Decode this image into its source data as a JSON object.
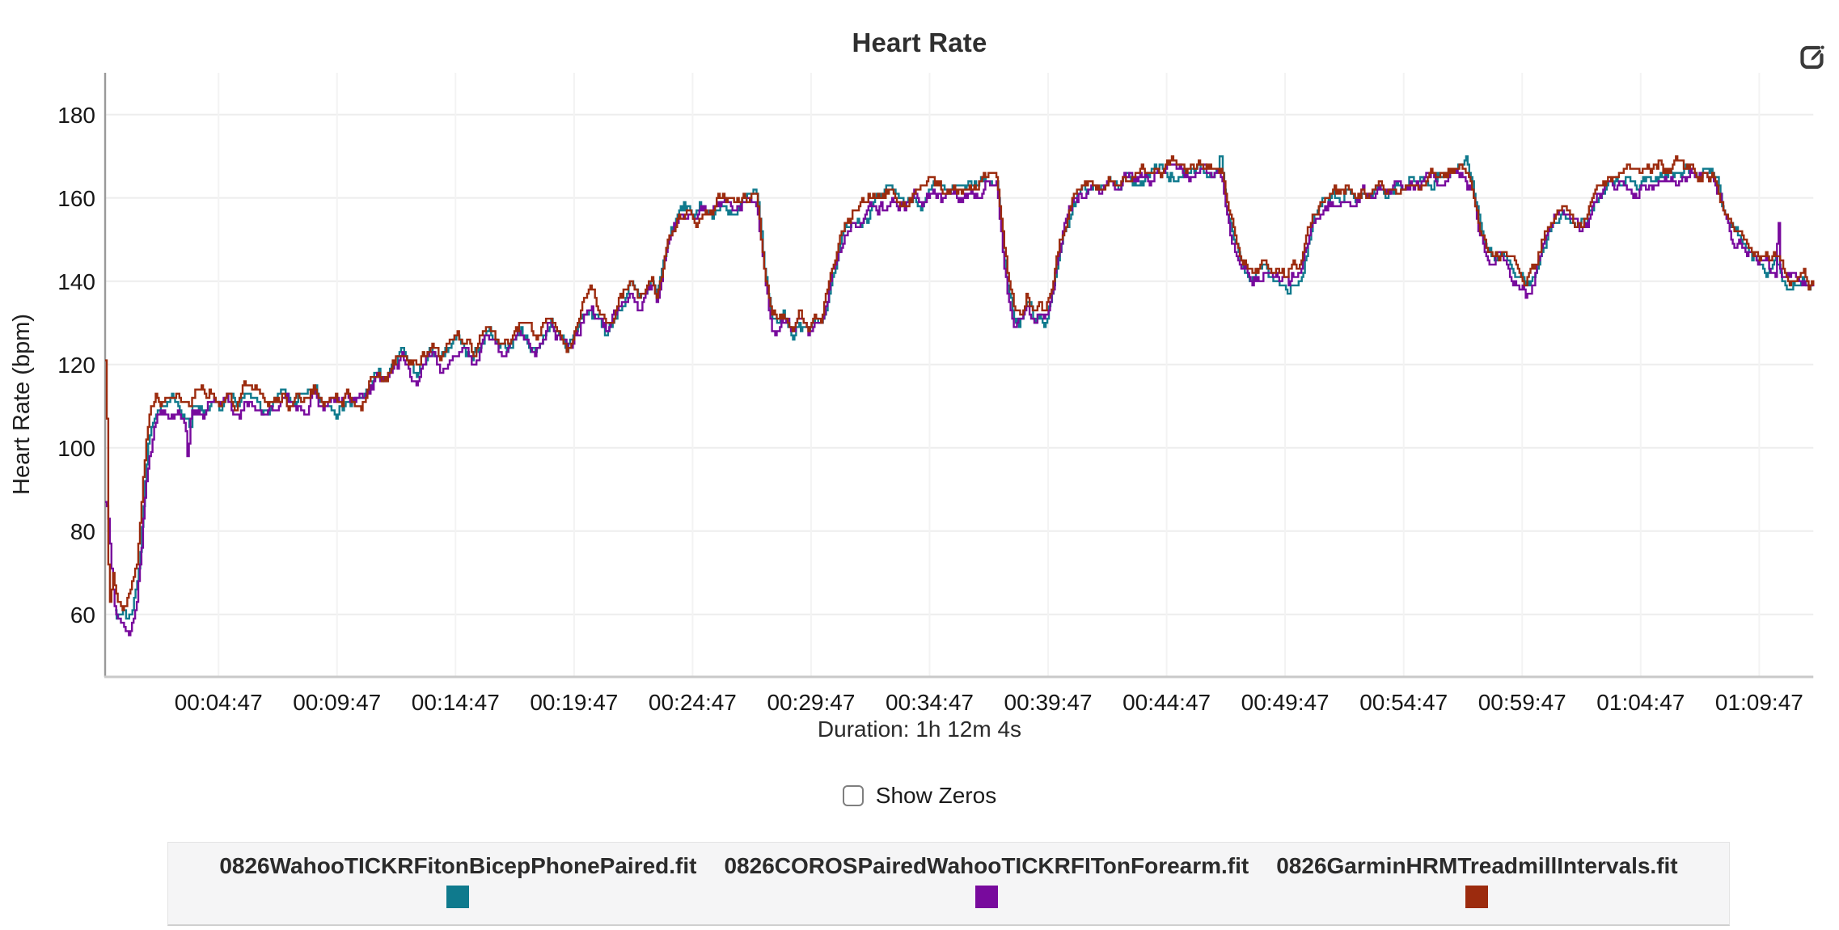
{
  "header": {
    "title": "Heart Rate",
    "edit_icon": "edit-icon",
    "edit_icon_color": "#3a3a3a"
  },
  "axis": {
    "duration_label": "Duration: 1h 12m 4s"
  },
  "controls": {
    "show_zeros_label": "Show Zeros",
    "checked": false
  },
  "legend": {
    "entries": [
      {
        "label": "0826WahooTICKRFitonBicepPhonePaired.fit",
        "color": "#0f7a8d"
      },
      {
        "label": "0826COROSPairedWahooTICKRFITonForearm.fit",
        "color": "#780a9d"
      },
      {
        "label": "0826GarminHRMTreadmillIntervals.fit",
        "color": "#9c2b0e"
      }
    ]
  },
  "chart_data": {
    "type": "line",
    "title": "Heart Rate",
    "xlabel": "",
    "ylabel": "Heart Rate (bpm)",
    "ylim": [
      45,
      190
    ],
    "yticks": [
      60,
      80,
      100,
      120,
      140,
      160,
      180
    ],
    "x_duration_seconds": 4324,
    "x_first_tick_seconds": 287,
    "x_tick_interval_seconds": 300,
    "x_tick_labels": [
      "00:04:47",
      "00:09:47",
      "00:14:47",
      "00:19:47",
      "00:24:47",
      "00:29:47",
      "00:34:47",
      "00:39:47",
      "00:44:47",
      "00:49:47",
      "00:54:47",
      "00:59:47",
      "01:04:47",
      "01:09:47"
    ],
    "grid": true,
    "legend_position": "bottom",
    "colors": {
      "h_grid": "#ededed",
      "v_grid": "#f3f3f3",
      "y_axis": "#9a9a9a",
      "x_axis": "#c9c9c9",
      "tick_text": "#161616"
    },
    "base_points": [
      [
        140,
        111
      ],
      [
        160,
        110
      ],
      [
        180,
        112
      ],
      [
        200,
        109
      ],
      [
        215,
        108
      ],
      [
        230,
        111
      ],
      [
        250,
        110
      ],
      [
        270,
        112
      ],
      [
        290,
        109
      ],
      [
        310,
        111
      ],
      [
        330,
        108
      ],
      [
        350,
        112
      ],
      [
        370,
        110
      ],
      [
        390,
        111
      ],
      [
        410,
        109
      ],
      [
        430,
        111
      ],
      [
        450,
        112
      ],
      [
        470,
        110
      ],
      [
        490,
        112
      ],
      [
        510,
        111
      ],
      [
        530,
        113
      ],
      [
        550,
        110
      ],
      [
        570,
        112
      ],
      [
        590,
        111
      ],
      [
        610,
        113
      ],
      [
        630,
        111
      ],
      [
        650,
        112
      ],
      [
        670,
        115
      ],
      [
        690,
        118
      ],
      [
        710,
        116
      ],
      [
        730,
        120
      ],
      [
        750,
        123
      ],
      [
        770,
        119
      ],
      [
        790,
        117
      ],
      [
        810,
        121
      ],
      [
        830,
        124
      ],
      [
        850,
        120
      ],
      [
        870,
        123
      ],
      [
        890,
        126
      ],
      [
        910,
        123
      ],
      [
        930,
        121
      ],
      [
        950,
        125
      ],
      [
        970,
        128
      ],
      [
        990,
        124
      ],
      [
        1010,
        122
      ],
      [
        1030,
        126
      ],
      [
        1050,
        129
      ],
      [
        1070,
        126
      ],
      [
        1090,
        124
      ],
      [
        1110,
        128
      ],
      [
        1130,
        131
      ],
      [
        1150,
        127
      ],
      [
        1170,
        125
      ],
      [
        1190,
        129
      ],
      [
        1210,
        133
      ],
      [
        1230,
        135
      ],
      [
        1250,
        131
      ],
      [
        1270,
        128
      ],
      [
        1290,
        132
      ],
      [
        1310,
        136
      ],
      [
        1330,
        139
      ],
      [
        1350,
        135
      ],
      [
        1370,
        138
      ],
      [
        1385,
        140
      ],
      [
        1395,
        137
      ],
      [
        1405,
        141
      ],
      [
        1415,
        146
      ],
      [
        1425,
        150
      ],
      [
        1435,
        153
      ],
      [
        1445,
        155
      ],
      [
        1455,
        157
      ],
      [
        1475,
        158
      ],
      [
        1495,
        156
      ],
      [
        1515,
        158
      ],
      [
        1535,
        157
      ],
      [
        1555,
        159
      ],
      [
        1575,
        158
      ],
      [
        1595,
        157
      ],
      [
        1615,
        159
      ],
      [
        1635,
        160
      ],
      [
        1648,
        160
      ],
      [
        1658,
        152
      ],
      [
        1668,
        143
      ],
      [
        1678,
        136
      ],
      [
        1688,
        131
      ],
      [
        1700,
        130
      ],
      [
        1715,
        133
      ],
      [
        1728,
        131
      ],
      [
        1740,
        128
      ],
      [
        1755,
        132
      ],
      [
        1768,
        130
      ],
      [
        1780,
        128
      ],
      [
        1795,
        131
      ],
      [
        1810,
        129
      ],
      [
        1818,
        131
      ],
      [
        1830,
        137
      ],
      [
        1842,
        143
      ],
      [
        1854,
        148
      ],
      [
        1866,
        151
      ],
      [
        1880,
        154
      ],
      [
        1895,
        156
      ],
      [
        1910,
        157
      ],
      [
        1930,
        158
      ],
      [
        1950,
        160
      ],
      [
        1970,
        159
      ],
      [
        1990,
        161
      ],
      [
        2010,
        160
      ],
      [
        2030,
        159
      ],
      [
        2050,
        161
      ],
      [
        2070,
        160
      ],
      [
        2090,
        162
      ],
      [
        2110,
        161
      ],
      [
        2130,
        160
      ],
      [
        2150,
        162
      ],
      [
        2170,
        161
      ],
      [
        2190,
        163
      ],
      [
        2210,
        162
      ],
      [
        2230,
        164
      ],
      [
        2250,
        163
      ],
      [
        2258,
        163
      ],
      [
        2266,
        155
      ],
      [
        2274,
        147
      ],
      [
        2284,
        140
      ],
      [
        2294,
        135
      ],
      [
        2304,
        132
      ],
      [
        2315,
        131
      ],
      [
        2325,
        134
      ],
      [
        2335,
        137
      ],
      [
        2345,
        133
      ],
      [
        2355,
        131
      ],
      [
        2365,
        134
      ],
      [
        2375,
        132
      ],
      [
        2385,
        133
      ],
      [
        2395,
        136
      ],
      [
        2402,
        140
      ],
      [
        2414,
        147
      ],
      [
        2426,
        152
      ],
      [
        2438,
        156
      ],
      [
        2450,
        159
      ],
      [
        2465,
        161
      ],
      [
        2480,
        162
      ],
      [
        2500,
        163
      ],
      [
        2520,
        162
      ],
      [
        2540,
        164
      ],
      [
        2560,
        163
      ],
      [
        2580,
        165
      ],
      [
        2600,
        164
      ],
      [
        2620,
        166
      ],
      [
        2640,
        165
      ],
      [
        2660,
        166
      ],
      [
        2680,
        165
      ],
      [
        2700,
        167
      ],
      [
        2720,
        166
      ],
      [
        2740,
        167
      ],
      [
        2760,
        166
      ],
      [
        2780,
        167
      ],
      [
        2800,
        167
      ],
      [
        2815,
        168
      ],
      [
        2830,
        165
      ],
      [
        2840,
        158
      ],
      [
        2852,
        152
      ],
      [
        2864,
        148
      ],
      [
        2876,
        145
      ],
      [
        2890,
        143
      ],
      [
        2905,
        142
      ],
      [
        2920,
        142
      ],
      [
        2935,
        143
      ],
      [
        2950,
        141
      ],
      [
        2965,
        142
      ],
      [
        2980,
        141
      ],
      [
        2995,
        140
      ],
      [
        3005,
        142
      ],
      [
        3015,
        141
      ],
      [
        3025,
        142
      ],
      [
        3037,
        146
      ],
      [
        3049,
        151
      ],
      [
        3061,
        155
      ],
      [
        3073,
        157
      ],
      [
        3085,
        158
      ],
      [
        3105,
        160
      ],
      [
        3125,
        159
      ],
      [
        3145,
        161
      ],
      [
        3165,
        160
      ],
      [
        3185,
        162
      ],
      [
        3205,
        161
      ],
      [
        3225,
        163
      ],
      [
        3245,
        162
      ],
      [
        3265,
        164
      ],
      [
        3285,
        163
      ],
      [
        3305,
        165
      ],
      [
        3325,
        164
      ],
      [
        3345,
        166
      ],
      [
        3365,
        165
      ],
      [
        3385,
        166
      ],
      [
        3405,
        166
      ],
      [
        3425,
        166
      ],
      [
        3440,
        167
      ],
      [
        3455,
        164
      ],
      [
        3467,
        159
      ],
      [
        3479,
        153
      ],
      [
        3491,
        149
      ],
      [
        3500,
        147
      ],
      [
        3512,
        146
      ],
      [
        3524,
        147
      ],
      [
        3536,
        146
      ],
      [
        3548,
        144
      ],
      [
        3560,
        142
      ],
      [
        3572,
        141
      ],
      [
        3584,
        140
      ],
      [
        3596,
        139
      ],
      [
        3605,
        140
      ],
      [
        3617,
        142
      ],
      [
        3629,
        146
      ],
      [
        3641,
        150
      ],
      [
        3653,
        153
      ],
      [
        3665,
        155
      ],
      [
        3677,
        156
      ],
      [
        3690,
        157
      ],
      [
        3705,
        155
      ],
      [
        3720,
        153
      ],
      [
        3735,
        152
      ],
      [
        3750,
        154
      ],
      [
        3765,
        158
      ],
      [
        3780,
        161
      ],
      [
        3795,
        163
      ],
      [
        3815,
        164
      ],
      [
        3835,
        163
      ],
      [
        3855,
        165
      ],
      [
        3875,
        164
      ],
      [
        3895,
        166
      ],
      [
        3915,
        165
      ],
      [
        3935,
        166
      ],
      [
        3955,
        164
      ],
      [
        3975,
        166
      ],
      [
        3995,
        165
      ],
      [
        4015,
        166
      ],
      [
        4035,
        165
      ],
      [
        4055,
        166
      ],
      [
        4075,
        165
      ],
      [
        4085,
        162
      ],
      [
        4095,
        158
      ],
      [
        4110,
        155
      ],
      [
        4125,
        152
      ],
      [
        4140,
        151
      ],
      [
        4155,
        149
      ],
      [
        4170,
        147
      ],
      [
        4185,
        146
      ],
      [
        4200,
        145
      ],
      [
        4215,
        144
      ],
      [
        4228,
        145
      ],
      [
        4240,
        143
      ],
      [
        4252,
        141
      ],
      [
        4264,
        140
      ],
      [
        4276,
        141
      ],
      [
        4288,
        140
      ],
      [
        4300,
        141
      ],
      [
        4312,
        139
      ],
      [
        4324,
        140
      ]
    ],
    "series": [
      {
        "name": "0826WahooTICKRFitonBicepPhonePaired.fit",
        "color": "#0f7a8d",
        "offset_bpm": -0.5,
        "seed": 7,
        "intro_points": [
          [
            25,
            63
          ],
          [
            32,
            61
          ],
          [
            40,
            60
          ],
          [
            48,
            62
          ],
          [
            56,
            60
          ],
          [
            64,
            61
          ],
          [
            72,
            64
          ],
          [
            80,
            68
          ],
          [
            90,
            78
          ],
          [
            100,
            92
          ],
          [
            110,
            102
          ],
          [
            120,
            108
          ],
          [
            130,
            110
          ],
          [
            140,
            111
          ]
        ],
        "spikes": [
          [
            215,
            104
          ],
          [
            2823,
            172
          ],
          [
            3446,
            171
          ]
        ]
      },
      {
        "name": "0826COROSPairedWahooTICKRFITonForearm.fit",
        "color": "#780a9d",
        "offset_bpm": -0.9,
        "seed": 13,
        "intro_points": [
          [
            0,
            88
          ],
          [
            6,
            87
          ],
          [
            12,
            80
          ],
          [
            20,
            70
          ],
          [
            30,
            63
          ],
          [
            40,
            60
          ],
          [
            50,
            58
          ],
          [
            61,
            57
          ],
          [
            70,
            60
          ],
          [
            80,
            65
          ],
          [
            90,
            75
          ],
          [
            100,
            90
          ],
          [
            110,
            100
          ],
          [
            122,
            107
          ],
          [
            132,
            110
          ],
          [
            140,
            110
          ]
        ],
        "spikes": [
          [
            209,
            97
          ],
          [
            2998,
            138
          ],
          [
            4235,
            157
          ]
        ]
      },
      {
        "name": "0826GarminHRMTreadmillIntervals.fit",
        "color": "#9c2b0e",
        "offset_bpm": 0.9,
        "seed": 3,
        "intro_points": [
          [
            0,
            120
          ],
          [
            3,
            116
          ],
          [
            5,
            98
          ],
          [
            7,
            78
          ],
          [
            9,
            66
          ],
          [
            12,
            64
          ],
          [
            16,
            66
          ],
          [
            20,
            70
          ],
          [
            24,
            67
          ],
          [
            30,
            64
          ],
          [
            40,
            63
          ],
          [
            50,
            62
          ],
          [
            60,
            64
          ],
          [
            70,
            67
          ],
          [
            80,
            71
          ],
          [
            88,
            80
          ],
          [
            96,
            92
          ],
          [
            104,
            100
          ],
          [
            112,
            106
          ],
          [
            122,
            110
          ],
          [
            132,
            112
          ],
          [
            140,
            112
          ]
        ],
        "spikes": []
      }
    ]
  }
}
